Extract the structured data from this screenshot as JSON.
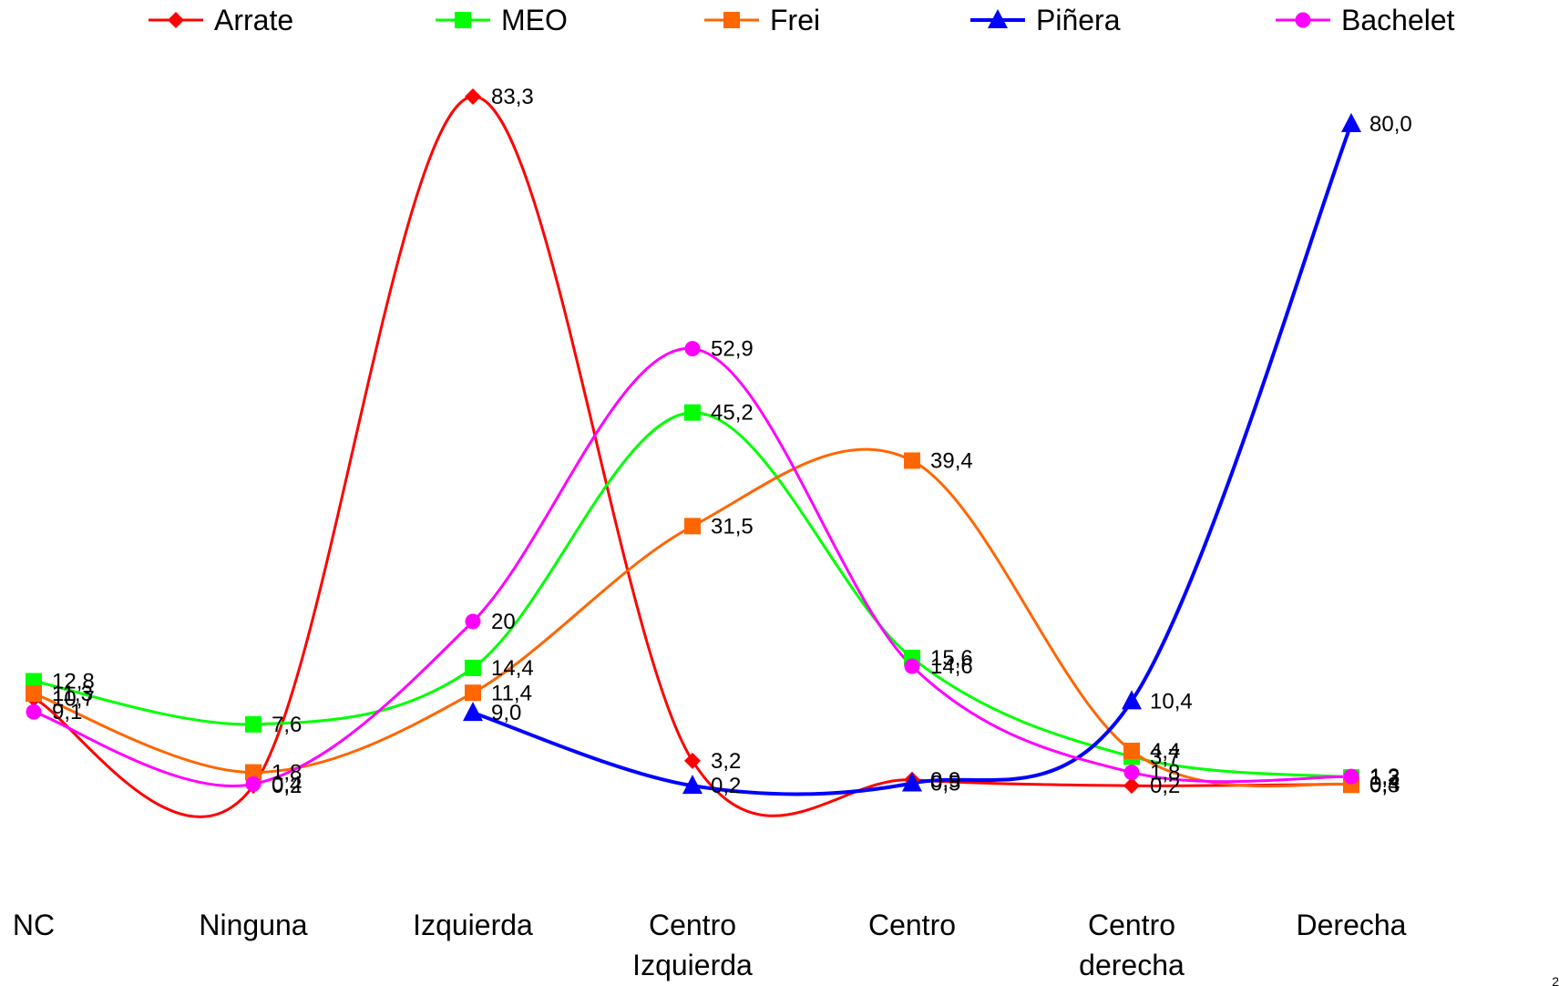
{
  "chart_data": {
    "type": "line",
    "title": "",
    "xlabel": "",
    "ylabel": "",
    "ylim": [
      -5,
      90
    ],
    "grid": false,
    "legend_position": "top",
    "categories": [
      [
        "NC"
      ],
      [
        "Ninguna"
      ],
      [
        "Izquierda"
      ],
      [
        "Centro",
        "Izquierda"
      ],
      [
        "Centro"
      ],
      [
        "Centro",
        "derecha"
      ],
      [
        "Derecha"
      ]
    ],
    "series": [
      {
        "name": "Arrate",
        "color": "#ff0000",
        "marker": "diamond",
        "x": [
          0,
          1,
          2,
          3,
          4,
          5,
          6
        ],
        "values": [
          10.7,
          0.2,
          83.3,
          3.2,
          0.9,
          0.2,
          0.4
        ],
        "labels": [
          "10,7",
          "0,2",
          "83,3",
          "3,2",
          "0,9",
          "0,2",
          "0,4"
        ]
      },
      {
        "name": "MEO",
        "color": "#00ff00",
        "marker": "square",
        "x": [
          0,
          1,
          2,
          3,
          4,
          5,
          6
        ],
        "values": [
          12.8,
          7.6,
          14.4,
          45.2,
          15.6,
          3.7,
          1.2
        ],
        "labels": [
          "12,8",
          "7,6",
          "14,4",
          "45,2",
          "15,6",
          "3,7",
          "1,2"
        ]
      },
      {
        "name": "Frei",
        "color": "#ff6600",
        "marker": "square",
        "x": [
          0,
          1,
          2,
          3,
          4,
          5,
          6
        ],
        "values": [
          11.3,
          1.8,
          11.4,
          31.5,
          39.4,
          4.4,
          0.3
        ],
        "labels": [
          "11,3",
          "1,8",
          "11,4",
          "31,5",
          "39,4",
          "4,4",
          "0,3"
        ]
      },
      {
        "name": "Piñera",
        "color": "#0000ff",
        "marker": "triangle",
        "x": [
          2,
          3,
          4,
          5,
          6
        ],
        "values": [
          9.0,
          0.2,
          0.5,
          10.4,
          80.0
        ],
        "labels": [
          "9,0",
          "0,2",
          "0,5",
          "10,4",
          "80,0"
        ]
      },
      {
        "name": "Bachelet",
        "color": "#ff00ff",
        "marker": "circle",
        "x": [
          0,
          1,
          2,
          3,
          4,
          5,
          6
        ],
        "values": [
          9.1,
          0.4,
          20,
          52.9,
          14.6,
          1.8,
          1.3
        ],
        "labels": [
          "9,1",
          "0,4",
          "20",
          "52,9",
          "14,6",
          "1,8",
          "1,3"
        ]
      }
    ]
  },
  "page_number": "2"
}
